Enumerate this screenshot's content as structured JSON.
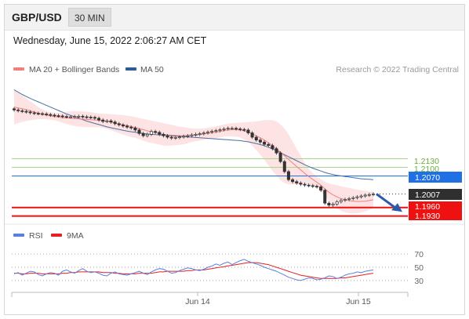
{
  "header": {
    "symbol": "GBP/USD",
    "timeframe": "30 MIN"
  },
  "timestamp": "Wednesday, June 15, 2022 2:06:27 AM CET",
  "legend": {
    "ma_boll": "MA 20 + Bollinger Bands",
    "ma50": "MA 50",
    "credit": "Research © 2022 Trading Central",
    "rsi": "RSI",
    "ma9": "9MA"
  },
  "colors": {
    "ma20": "#f08080",
    "ma50": "#4a6fa5",
    "band": "#fde3e3",
    "green": "#7cc26b",
    "blue": "#1f6fe5",
    "red": "#ee1111",
    "dark": "#2f2f2f",
    "arrow": "#2b5aa8",
    "rsi": "#5b7fe0",
    "rsi_ma": "#e62020"
  },
  "levels": {
    "r2": {
      "value": 1.213,
      "label": "1.2130"
    },
    "r1": {
      "value": 1.21,
      "label": "1.2100"
    },
    "pivot": {
      "value": 1.207,
      "label": "1.2070"
    },
    "last": {
      "value": 1.2007,
      "label": "1.2007"
    },
    "s1": {
      "value": 1.196,
      "label": "1.1960"
    },
    "s2": {
      "value": 1.193,
      "label": "1.1930"
    }
  },
  "x_labels": [
    "Jun 14",
    "Jun 15"
  ],
  "chart_data": [
    {
      "type": "candlestick",
      "title": "GBP/USD",
      "timeframe": "30 MIN",
      "series": [
        {
          "name": "MA 20 + Bollinger Bands"
        },
        {
          "name": "MA 50"
        }
      ],
      "price_close": [
        1.23,
        1.2297,
        1.2295,
        1.2293,
        1.229,
        1.2288,
        1.2287,
        1.2286,
        1.2284,
        1.2282,
        1.228,
        1.2279,
        1.2277,
        1.2276,
        1.2276,
        1.2277,
        1.2278,
        1.2276,
        1.2275,
        1.2274,
        1.2271,
        1.2265,
        1.226,
        1.2262,
        1.2258,
        1.2252,
        1.2248,
        1.2244,
        1.224,
        1.2237,
        1.223,
        1.2218,
        1.221,
        1.2215,
        1.2225,
        1.2222,
        1.2215,
        1.221,
        1.2205,
        1.2202,
        1.2204,
        1.2206,
        1.2208,
        1.221,
        1.2213,
        1.2215,
        1.2217,
        1.222,
        1.2223,
        1.2226,
        1.2228,
        1.2231,
        1.2234,
        1.2236,
        1.2236,
        1.2234,
        1.2232,
        1.223,
        1.222,
        1.2205,
        1.2195,
        1.2188,
        1.218,
        1.2176,
        1.2165,
        1.215,
        1.212,
        1.2085,
        1.2057,
        1.205,
        1.2045,
        1.2041,
        1.2038,
        1.2036,
        1.2034,
        1.2032,
        1.202,
        1.1975,
        1.1968,
        1.1972,
        1.198,
        1.1985,
        1.1988,
        1.1991,
        1.1994,
        1.1997,
        1.2,
        1.2003,
        1.2005,
        1.2007
      ],
      "ma20": [
        1.231,
        1.2307,
        1.2304,
        1.2301,
        1.2297,
        1.2293,
        1.2289,
        1.2285,
        1.2282,
        1.2279,
        1.2277,
        1.2275,
        1.2273,
        1.2272,
        1.2271,
        1.227,
        1.2269,
        1.2268,
        1.2267,
        1.2266,
        1.2265,
        1.2264,
        1.2262,
        1.226,
        1.2257,
        1.2254,
        1.2251,
        1.2248,
        1.2245,
        1.2242,
        1.2239,
        1.2235,
        1.2231,
        1.2227,
        1.2224,
        1.2221,
        1.2218,
        1.2215,
        1.2213,
        1.2212,
        1.2211,
        1.221,
        1.221,
        1.2211,
        1.2212,
        1.2213,
        1.2214,
        1.2216,
        1.2218,
        1.222,
        1.2222,
        1.2225,
        1.2228,
        1.223,
        1.2231,
        1.2231,
        1.223,
        1.2227,
        1.2223,
        1.2217,
        1.221,
        1.2203,
        1.2195,
        1.2186,
        1.2176,
        1.2165,
        1.2153,
        1.214,
        1.2128,
        1.2115,
        1.2103,
        1.2091,
        1.2079,
        1.2068,
        1.2058,
        1.2048,
        1.2038,
        1.2025,
        1.2013,
        1.2004,
        1.1997,
        1.1991,
        1.1987,
        1.1984,
        1.1982,
        1.1981,
        1.1981,
        1.1982,
        1.1984,
        1.1987
      ],
      "ma50": [
        1.237,
        1.2362,
        1.2354,
        1.2347,
        1.234,
        1.2334,
        1.2328,
        1.2322,
        1.2316,
        1.231,
        1.2304,
        1.2298,
        1.2292,
        1.2286,
        1.2281,
        1.2276,
        1.2271,
        1.2266,
        1.2261,
        1.2257,
        1.2253,
        1.2249,
        1.2245,
        1.2241,
        1.2238,
        1.2235,
        1.2232,
        1.2229,
        1.2226,
        1.2224,
        1.2222,
        1.222,
        1.2218,
        1.2216,
        1.2215,
        1.2214,
        1.2213,
        1.2212,
        1.2211,
        1.221,
        1.2209,
        1.2208,
        1.2207,
        1.2206,
        1.2205,
        1.2204,
        1.2203,
        1.2202,
        1.2201,
        1.22,
        1.2199,
        1.2198,
        1.2197,
        1.2196,
        1.2195,
        1.2194,
        1.2193,
        1.2191,
        1.2189,
        1.2186,
        1.2183,
        1.2179,
        1.2175,
        1.217,
        1.2164,
        1.2158,
        1.2151,
        1.2144,
        1.2137,
        1.213,
        1.2123,
        1.2116,
        1.2109,
        1.2103,
        1.2097,
        1.2092,
        1.2087,
        1.2082,
        1.2078,
        1.2075,
        1.2072,
        1.207,
        1.2068,
        1.2066,
        1.2064,
        1.2062,
        1.206,
        1.2059,
        1.2058,
        1.2057
      ],
      "band_upper": [
        1.237,
        1.236,
        1.235,
        1.234,
        1.233,
        1.232,
        1.231,
        1.2302,
        1.2296,
        1.2292,
        1.229,
        1.229,
        1.2291,
        1.2293,
        1.2295,
        1.2296,
        1.2296,
        1.2295,
        1.2294,
        1.2292,
        1.229,
        1.2288,
        1.2287,
        1.2286,
        1.2285,
        1.2284,
        1.2283,
        1.2282,
        1.228,
        1.2278,
        1.2275,
        1.2272,
        1.2269,
        1.2266,
        1.2263,
        1.226,
        1.2257,
        1.2254,
        1.2251,
        1.2248,
        1.2245,
        1.2242,
        1.224,
        1.2238,
        1.2236,
        1.2235,
        1.2235,
        1.2236,
        1.2238,
        1.224,
        1.2243,
        1.2246,
        1.2249,
        1.2252,
        1.2254,
        1.2255,
        1.2256,
        1.2257,
        1.2258,
        1.2259,
        1.226,
        1.2262,
        1.2264,
        1.2265,
        1.2264,
        1.226,
        1.225,
        1.2235,
        1.2215,
        1.219,
        1.2165,
        1.214,
        1.2115,
        1.2095,
        1.208,
        1.2068,
        1.2058,
        1.205,
        1.2044,
        1.204,
        1.2037,
        1.2034,
        1.2031,
        1.2028,
        1.2025,
        1.2022,
        1.202,
        1.2018,
        1.2016,
        1.2015
      ],
      "band_lower": [
        1.225,
        1.2254,
        1.2258,
        1.2262,
        1.2264,
        1.2266,
        1.2268,
        1.2268,
        1.2268,
        1.2266,
        1.2264,
        1.226,
        1.2255,
        1.2251,
        1.2247,
        1.2244,
        1.2242,
        1.2241,
        1.224,
        1.224,
        1.224,
        1.224,
        1.2237,
        1.2234,
        1.2229,
        1.2224,
        1.2219,
        1.2214,
        1.221,
        1.2206,
        1.2203,
        1.2198,
        1.2193,
        1.2188,
        1.2185,
        1.2182,
        1.2179,
        1.2176,
        1.2175,
        1.2176,
        1.2177,
        1.2178,
        1.218,
        1.2184,
        1.2188,
        1.2191,
        1.2193,
        1.2196,
        1.2198,
        1.22,
        1.2201,
        1.2204,
        1.2207,
        1.2208,
        1.2208,
        1.2207,
        1.2204,
        1.2197,
        1.2188,
        1.2175,
        1.216,
        1.2144,
        1.2126,
        1.2107,
        1.2088,
        1.207,
        1.2056,
        1.2045,
        1.2041,
        1.204,
        1.2041,
        1.2042,
        1.2043,
        1.2041,
        1.2036,
        1.2028,
        1.2018,
        1.2,
        1.1982,
        1.1968,
        1.1957,
        1.1948,
        1.1943,
        1.194,
        1.1939,
        1.194,
        1.1942,
        1.1946,
        1.1952,
        1.1959
      ],
      "ylim": [
        1.191,
        1.241
      ]
    },
    {
      "type": "line",
      "series": [
        {
          "name": "RSI",
          "values": [
            40,
            42,
            38,
            41,
            44,
            43,
            39,
            37,
            40,
            42,
            41,
            38,
            44,
            46,
            43,
            41,
            45,
            48,
            44,
            42,
            43,
            41,
            38,
            37,
            41,
            43,
            40,
            39,
            38,
            40,
            42,
            44,
            41,
            39,
            43,
            46,
            48,
            47,
            44,
            41,
            42,
            45,
            47,
            49,
            48,
            46,
            45,
            47,
            50,
            52,
            55,
            53,
            56,
            58,
            54,
            57,
            60,
            62,
            59,
            57,
            55,
            53,
            50,
            48,
            46,
            44,
            41,
            38,
            35,
            33,
            31,
            30,
            32,
            34,
            33,
            31,
            32,
            34,
            37,
            36,
            33,
            35,
            38,
            40,
            41,
            43,
            42,
            44,
            45,
            46
          ]
        },
        {
          "name": "9MA",
          "values": [
            41,
            41,
            40,
            40,
            41,
            41,
            41,
            40,
            40,
            40,
            40,
            40,
            41,
            41,
            42,
            42,
            43,
            43,
            43,
            43,
            43,
            43,
            42,
            42,
            42,
            41,
            41,
            40,
            40,
            40,
            40,
            41,
            41,
            41,
            41,
            42,
            43,
            43,
            44,
            44,
            44,
            44,
            44,
            45,
            45,
            46,
            46,
            46,
            47,
            48,
            49,
            50,
            51,
            52,
            53,
            54,
            55,
            56,
            57,
            57,
            57,
            56,
            55,
            54,
            52,
            50,
            48,
            46,
            44,
            42,
            40,
            38,
            37,
            36,
            35,
            34,
            33,
            33,
            33,
            33,
            33,
            34,
            34,
            35,
            36,
            37,
            38,
            39,
            40,
            41
          ]
        }
      ],
      "yticks": [
        30,
        50,
        70
      ],
      "ylim": [
        18,
        82
      ]
    }
  ]
}
